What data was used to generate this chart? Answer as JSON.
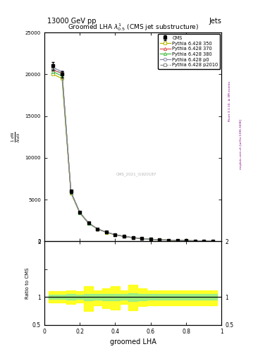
{
  "title_top": "13000 GeV pp",
  "title_right": "Jets",
  "plot_title": "Groomed LHA $\\lambda^{1}_{0.5}$ (CMS jet substructure)",
  "xlabel": "groomed LHA",
  "ylabel_main": "$\\mathregular{\\frac{1}{\\mathit{N}} \\frac{dN}{d\\lambda}}$",
  "ylabel_ratio": "Ratio to CMS",
  "watermark": "CMS_2021_I1920187",
  "rivet_text": "Rivet 3.1.10, ≥ 3M events",
  "mcplots_text": "mcplots.cern.ch [arXiv:1306.3436]",
  "x_data": [
    0.05,
    0.1,
    0.15,
    0.2,
    0.25,
    0.3,
    0.35,
    0.4,
    0.45,
    0.5,
    0.55,
    0.6,
    0.65,
    0.7,
    0.75,
    0.8,
    0.85,
    0.9,
    0.95
  ],
  "cms_y": [
    21000,
    20000,
    6000,
    3500,
    2200,
    1500,
    1100,
    800,
    600,
    450,
    330,
    250,
    200,
    150,
    120,
    90,
    60,
    40,
    20
  ],
  "cms_yerr": [
    500,
    400,
    200,
    100,
    80,
    60,
    40,
    30,
    25,
    20,
    15,
    12,
    10,
    8,
    6,
    5,
    4,
    3,
    2
  ],
  "py350_y": [
    20000,
    19500,
    5800,
    3400,
    2150,
    1480,
    1080,
    790,
    590,
    440,
    325,
    245,
    195,
    148,
    118,
    88,
    58,
    38,
    18
  ],
  "py370_y": [
    20500,
    20100,
    5900,
    3450,
    2180,
    1490,
    1090,
    795,
    595,
    445,
    328,
    248,
    198,
    150,
    119,
    89,
    59,
    39,
    19
  ],
  "py380_y": [
    20300,
    19800,
    5850,
    3420,
    2160,
    1485,
    1085,
    792,
    592,
    442,
    326,
    246,
    196,
    149,
    118,
    89,
    59,
    38,
    19
  ],
  "pyp0_y": [
    20800,
    20300,
    5950,
    3470,
    2190,
    1495,
    1095,
    798,
    598,
    447,
    330,
    249,
    199,
    151,
    120,
    90,
    60,
    39,
    19
  ],
  "pyp2010_y": [
    20600,
    20100,
    5900,
    3460,
    2185,
    1492,
    1092,
    796,
    596,
    445,
    329,
    248,
    198,
    150,
    119,
    90,
    60,
    39,
    19
  ],
  "ratio_yellow_upper": [
    1.1,
    1.1,
    1.12,
    1.1,
    1.2,
    1.12,
    1.15,
    1.2,
    1.12,
    1.22,
    1.15,
    1.12,
    1.12,
    1.12,
    1.12,
    1.12,
    1.12,
    1.12,
    1.12
  ],
  "ratio_yellow_lower": [
    0.9,
    0.9,
    0.88,
    0.9,
    0.75,
    0.85,
    0.8,
    0.78,
    0.88,
    0.76,
    0.84,
    0.85,
    0.85,
    0.85,
    0.85,
    0.85,
    0.85,
    0.85,
    0.85
  ],
  "ratio_green_upper": [
    1.04,
    1.04,
    1.05,
    1.04,
    1.06,
    1.05,
    1.06,
    1.06,
    1.05,
    1.07,
    1.06,
    1.05,
    1.05,
    1.05,
    1.05,
    1.05,
    1.05,
    1.05,
    1.05
  ],
  "ratio_green_lower": [
    0.96,
    0.96,
    0.95,
    0.96,
    0.94,
    0.95,
    0.94,
    0.94,
    0.95,
    0.93,
    0.94,
    0.95,
    0.95,
    0.95,
    0.95,
    0.95,
    0.95,
    0.95,
    0.95
  ],
  "color_350": "#b8b800",
  "color_370": "#e05050",
  "color_380": "#44bb44",
  "color_p0": "#8888aa",
  "color_p2010": "#888888",
  "ylim_main": [
    0,
    25000
  ],
  "ylim_ratio": [
    0.5,
    2.0
  ],
  "xlim": [
    0,
    1.0
  ],
  "yticks_main": [
    0,
    5000,
    10000,
    15000,
    20000,
    25000
  ],
  "ytick_labels_main": [
    "0",
    "5000",
    "10000",
    "15000",
    "20000",
    "25000"
  ]
}
